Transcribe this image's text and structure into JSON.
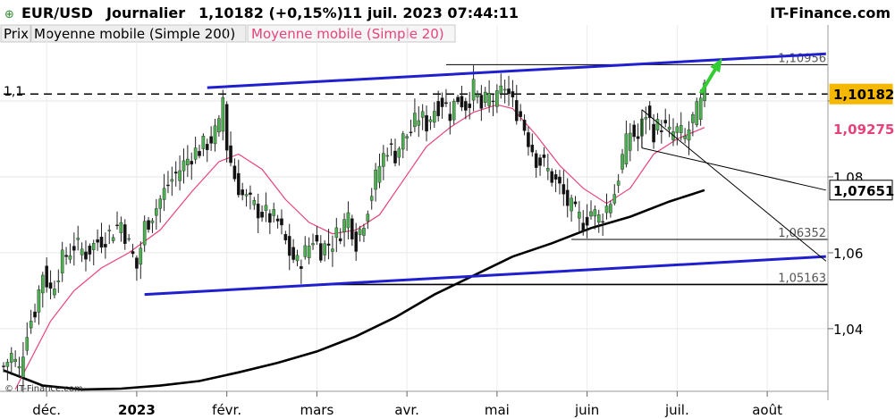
{
  "header": {
    "pair": "EUR/USD",
    "period": "Journalier",
    "quote": "1,10182 (+0,15%)",
    "datetime": "11 juil. 2023 07:44:11",
    "brand": "IT-Finance.com"
  },
  "legend": {
    "price": "Prix",
    "sma200": "Moyenne mobile (Simple 200)",
    "sma20": "Moyenne mobile (Simple 20)"
  },
  "watermark": "© IT-Finance.com",
  "colors": {
    "candle_up": "#4caf50",
    "candle_down": "#111111",
    "sma20": "#e8427c",
    "sma200": "#000000",
    "channel": "#1f1fcf",
    "arrow": "#33cc33",
    "price_badge": "#f5b800",
    "sma20_badge": "#e8427c"
  },
  "chart_data": {
    "type": "candlestick",
    "ylim": [
      1.0235,
      1.12
    ],
    "y_ticks": [
      {
        "value": 1.04,
        "label": "1,04"
      },
      {
        "value": 1.06,
        "label": "1,06"
      },
      {
        "value": 1.08,
        "label": "1,08"
      },
      {
        "value": 1.1,
        "label": "1,1"
      }
    ],
    "x_labels": [
      {
        "index": 11,
        "label": "déc."
      },
      {
        "index": 34,
        "label": "2023",
        "bold": true
      },
      {
        "index": 57,
        "label": "févr."
      },
      {
        "index": 80,
        "label": "mars"
      },
      {
        "index": 103,
        "label": "avr."
      },
      {
        "index": 126,
        "label": "mai"
      },
      {
        "index": 149,
        "label": "juin"
      },
      {
        "index": 172,
        "label": "juil."
      },
      {
        "index": 195,
        "label": "août"
      }
    ],
    "x_range": [
      0,
      210
    ],
    "close_anchors": [
      [
        0,
        1.03
      ],
      [
        2,
        1.033
      ],
      [
        4,
        1.029
      ],
      [
        6,
        1.04
      ],
      [
        8,
        1.045
      ],
      [
        10,
        1.055
      ],
      [
        12,
        1.05
      ],
      [
        15,
        1.058
      ],
      [
        18,
        1.062
      ],
      [
        21,
        1.06
      ],
      [
        24,
        1.063
      ],
      [
        27,
        1.065
      ],
      [
        30,
        1.068
      ],
      [
        32,
        1.062
      ],
      [
        34,
        1.056
      ],
      [
        36,
        1.067
      ],
      [
        39,
        1.072
      ],
      [
        42,
        1.078
      ],
      [
        45,
        1.082
      ],
      [
        48,
        1.086
      ],
      [
        51,
        1.088
      ],
      [
        53,
        1.09
      ],
      [
        55,
        1.093
      ],
      [
        56,
        1.101
      ],
      [
        57,
        1.088
      ],
      [
        59,
        1.08
      ],
      [
        61,
        1.075
      ],
      [
        64,
        1.072
      ],
      [
        67,
        1.07
      ],
      [
        70,
        1.068
      ],
      [
        73,
        1.06
      ],
      [
        75,
        1.057
      ],
      [
        77,
        1.06
      ],
      [
        79,
        1.064
      ],
      [
        81,
        1.061
      ],
      [
        84,
        1.063
      ],
      [
        86,
        1.066
      ],
      [
        88,
        1.07
      ],
      [
        90,
        1.063
      ],
      [
        92,
        1.069
      ],
      [
        94,
        1.076
      ],
      [
        96,
        1.083
      ],
      [
        98,
        1.088
      ],
      [
        100,
        1.086
      ],
      [
        102,
        1.09
      ],
      [
        104,
        1.092
      ],
      [
        106,
        1.096
      ],
      [
        108,
        1.094
      ],
      [
        110,
        1.098
      ],
      [
        112,
        1.1
      ],
      [
        114,
        1.097
      ],
      [
        116,
        1.101
      ],
      [
        118,
        1.099
      ],
      [
        120,
        1.103
      ],
      [
        122,
        1.098
      ],
      [
        124,
        1.101
      ],
      [
        126,
        1.1
      ],
      [
        128,
        1.104
      ],
      [
        130,
        1.099
      ],
      [
        132,
        1.096
      ],
      [
        134,
        1.09
      ],
      [
        136,
        1.085
      ],
      [
        138,
        1.083
      ],
      [
        140,
        1.08
      ],
      [
        142,
        1.077
      ],
      [
        144,
        1.073
      ],
      [
        146,
        1.07
      ],
      [
        148,
        1.068
      ],
      [
        150,
        1.071
      ],
      [
        152,
        1.069
      ],
      [
        154,
        1.072
      ],
      [
        156,
        1.076
      ],
      [
        158,
        1.085
      ],
      [
        160,
        1.092
      ],
      [
        162,
        1.09
      ],
      [
        164,
        1.097
      ],
      [
        166,
        1.092
      ],
      [
        168,
        1.094
      ],
      [
        170,
        1.091
      ],
      [
        172,
        1.092
      ],
      [
        174,
        1.09
      ],
      [
        176,
        1.095
      ],
      [
        178,
        1.099
      ],
      [
        179,
        1.102
      ]
    ],
    "sma20": {
      "name": "Moyenne mobile (Simple 20)",
      "points": [
        [
          3,
          1.024
        ],
        [
          8,
          1.034
        ],
        [
          12,
          1.042
        ],
        [
          18,
          1.05
        ],
        [
          25,
          1.056
        ],
        [
          32,
          1.06
        ],
        [
          40,
          1.066
        ],
        [
          48,
          1.076
        ],
        [
          55,
          1.084
        ],
        [
          60,
          1.086
        ],
        [
          66,
          1.082
        ],
        [
          72,
          1.074
        ],
        [
          78,
          1.068
        ],
        [
          84,
          1.065
        ],
        [
          90,
          1.066
        ],
        [
          96,
          1.07
        ],
        [
          102,
          1.079
        ],
        [
          108,
          1.088
        ],
        [
          114,
          1.093
        ],
        [
          120,
          1.097
        ],
        [
          126,
          1.099
        ],
        [
          130,
          1.098
        ],
        [
          136,
          1.091
        ],
        [
          142,
          1.083
        ],
        [
          148,
          1.077
        ],
        [
          154,
          1.073
        ],
        [
          160,
          1.077
        ],
        [
          166,
          1.086
        ],
        [
          172,
          1.09
        ],
        [
          179,
          1.093
        ]
      ]
    },
    "sma200": {
      "name": "Moyenne mobile (Simple 200)",
      "points": [
        [
          0,
          1.029
        ],
        [
          10,
          1.025
        ],
        [
          20,
          1.024
        ],
        [
          30,
          1.0242
        ],
        [
          40,
          1.025
        ],
        [
          50,
          1.0262
        ],
        [
          60,
          1.0285
        ],
        [
          70,
          1.031
        ],
        [
          80,
          1.034
        ],
        [
          90,
          1.038
        ],
        [
          100,
          1.043
        ],
        [
          110,
          1.049
        ],
        [
          120,
          1.054
        ],
        [
          130,
          1.059
        ],
        [
          140,
          1.0625
        ],
        [
          150,
          1.0665
        ],
        [
          160,
          1.0695
        ],
        [
          170,
          1.0735
        ],
        [
          176,
          1.0755
        ],
        [
          179,
          1.0765
        ]
      ]
    },
    "levels": [
      {
        "value": 1.10956,
        "label": "1,10956",
        "from_index": 113,
        "style": "thin"
      },
      {
        "value": 1.10182,
        "label": "",
        "from_index": 0,
        "style": "dashed"
      },
      {
        "value": 1.06352,
        "label": "1,06352",
        "from_index": 145,
        "style": "thin"
      },
      {
        "value": 1.05163,
        "label": "1,05163",
        "from_index": 84,
        "style": "thick"
      }
    ],
    "channel_lines": [
      {
        "from": [
          52,
          1.1035
        ],
        "to": [
          210,
          1.1124
        ],
        "style": "channel"
      },
      {
        "from": [
          36,
          1.049
        ],
        "to": [
          210,
          1.059
        ],
        "style": "channel"
      }
    ],
    "trend_lines": [
      {
        "from": [
          163,
          1.0977
        ],
        "to": [
          210,
          1.0578
        ]
      },
      {
        "from": [
          163,
          1.0876
        ],
        "to": [
          210,
          1.0765
        ]
      },
      {
        "from": [
          163,
          1.0977
        ],
        "to": [
          163,
          1.0876
        ]
      }
    ],
    "arrow": {
      "from": [
        178,
        1.102
      ],
      "to": [
        183,
        1.1105
      ]
    },
    "badges": [
      {
        "value": 1.10182,
        "label": "1,10182",
        "kind": "price"
      },
      {
        "value": 1.09275,
        "label": "1,09275",
        "kind": "sma20"
      },
      {
        "value": 1.07651,
        "label": "1,07651",
        "kind": "sma200"
      }
    ]
  }
}
